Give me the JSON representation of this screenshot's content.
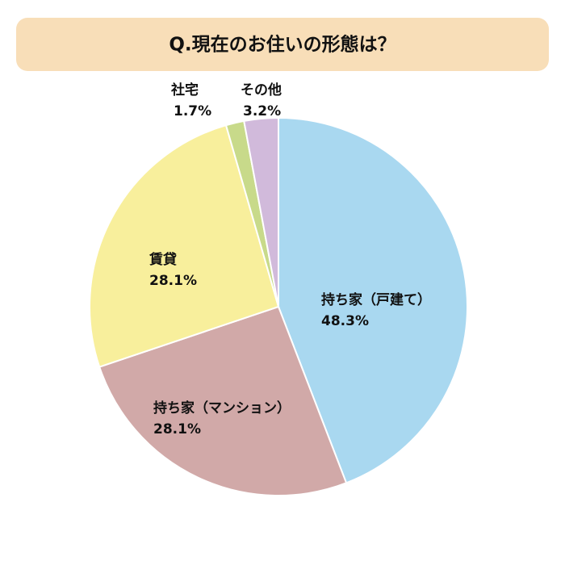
{
  "chart_data": {
    "type": "pie",
    "title": "Q.現在のお住いの形態は？",
    "categories": [
      "持ち家（戸建て）",
      "持ち家（マンション）",
      "賃貸",
      "社宅",
      "その他"
    ],
    "values": [
      48.3,
      28.1,
      28.1,
      1.7,
      3.2
    ],
    "value_labels": [
      "48.3%",
      "28.1%",
      "28.1%",
      "1.7%",
      "3.2%"
    ],
    "colors": [
      "#a9d8f0",
      "#d1a9a8",
      "#f8ef9c",
      "#c8da8a",
      "#d1badb"
    ]
  }
}
